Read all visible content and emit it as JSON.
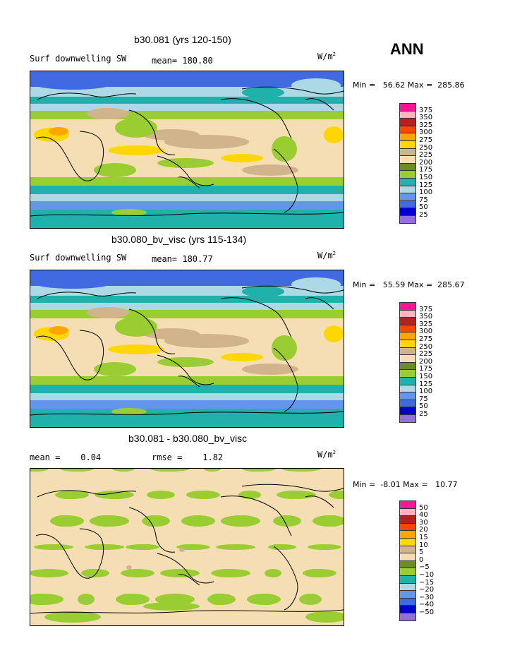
{
  "season": "ANN",
  "colors": [
    "#9370DB",
    "#0000CD",
    "#4169E1",
    "#6495ED",
    "#ADD8E6",
    "#20B2AA",
    "#9ACD32",
    "#6B8E23",
    "#F5DEB3",
    "#D2B48C",
    "#FFD700",
    "#FFA500",
    "#FF4500",
    "#B22222",
    "#FFB6C1",
    "#FF1493"
  ],
  "panels": [
    {
      "title": "b30.081 (yrs 120-150)",
      "left_label": "Surf downwelling SW",
      "mid_label": "mean= 180.80",
      "units": "W/m",
      "units_exp": "2",
      "minmax": "Min =   56.62 Max =  285.86",
      "ticks": [
        "375",
        "350",
        "325",
        "300",
        "275",
        "250",
        "225",
        "200",
        "175",
        "150",
        "125",
        "100",
        "75",
        "50",
        "25"
      ],
      "kind": "absolute"
    },
    {
      "title": "b30.080_bv_visc (yrs 115-134)",
      "left_label": "Surf downwelling SW",
      "mid_label": "mean= 180.77",
      "units": "W/m",
      "units_exp": "2",
      "minmax": "Min =   55.59 Max =  285.67",
      "ticks": [
        "375",
        "350",
        "325",
        "300",
        "275",
        "250",
        "225",
        "200",
        "175",
        "150",
        "125",
        "100",
        "75",
        "50",
        "25"
      ],
      "kind": "absolute"
    },
    {
      "title": "b30.081 - b30.080_bv_visc",
      "left_label": "mean =    0.04",
      "mid_label": "rmse =    1.82",
      "units": "W/m",
      "units_exp": "2",
      "minmax": "Min =  -8.01 Max =   10.77",
      "ticks": [
        "50",
        "40",
        "30",
        "20",
        "15",
        "10",
        "5",
        "0",
        "-5",
        "-10",
        "-15",
        "-20",
        "-30",
        "-40",
        "-50"
      ],
      "kind": "difference"
    }
  ]
}
